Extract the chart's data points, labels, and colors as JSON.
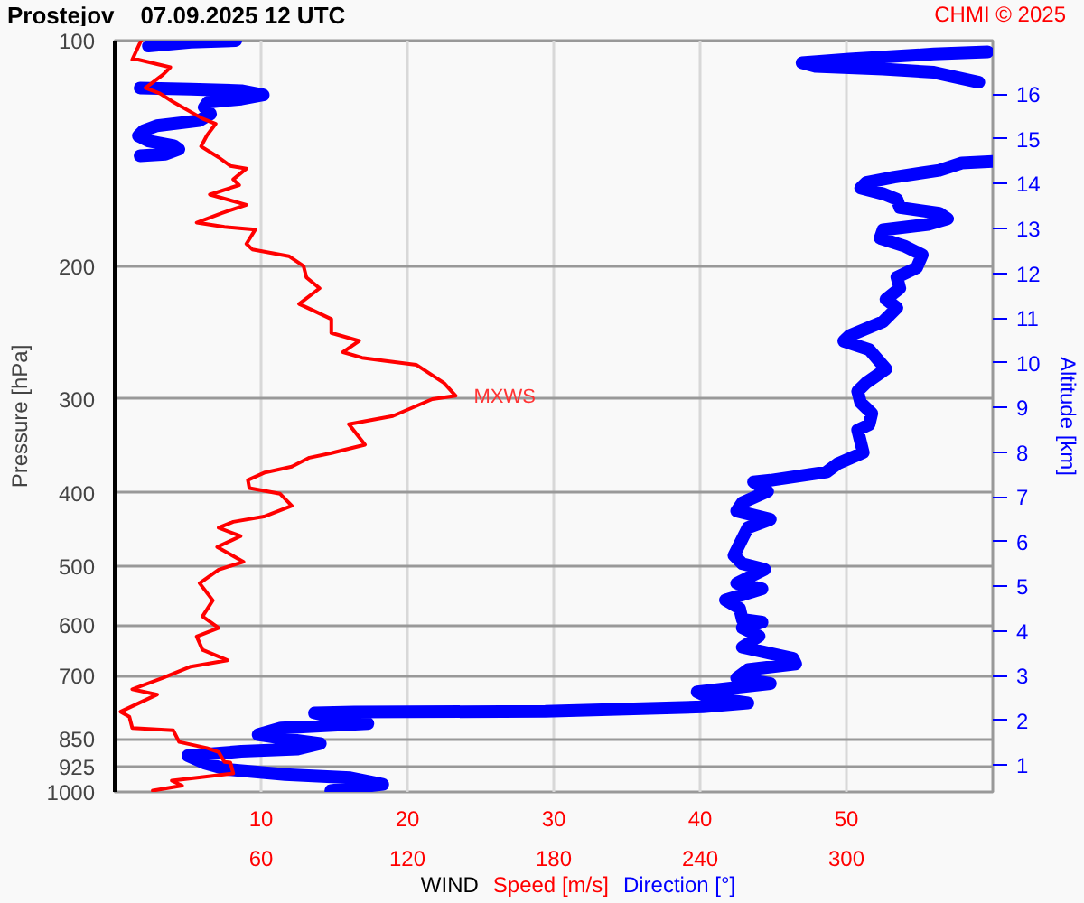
{
  "chart_data": {
    "type": "line",
    "title": "Prostejov    07.09.2025 12 UTC",
    "xlabel": "WIND",
    "ylabel": "Pressure [hPa]",
    "y2label": "Altitude [km]",
    "annotations": [
      "CHMI © 2025",
      {
        "text": "MXWS",
        "x": 23.3,
        "y": 297
      }
    ],
    "xlim": [
      0,
      60
    ],
    "xticks": [
      10,
      20,
      30,
      40,
      50
    ],
    "x2lim": [
      0,
      360
    ],
    "x2ticks": [
      60,
      120,
      180,
      240,
      300
    ],
    "ylim": [
      1000,
      100
    ],
    "yticks": [
      100,
      200,
      300,
      400,
      500,
      600,
      700,
      850,
      925,
      1000
    ],
    "y2lim": [
      0.4,
      17.2
    ],
    "y2ticks": [
      1,
      2,
      3,
      4,
      5,
      6,
      7,
      8,
      9,
      10,
      11,
      12,
      13,
      14,
      15,
      16
    ],
    "log": "y",
    "grid": true,
    "legend": "bottom",
    "line_style": "solid",
    "series": [
      {
        "name": "Speed [m/s]",
        "color": "#ff0000",
        "x": [
          1.8,
          1.2,
          1.6,
          3.8,
          3.3,
          2.1,
          3.1,
          4.0,
          6.0,
          6.9,
          6.3,
          5.9,
          7.1,
          7.9,
          9.0,
          8.1,
          8.5,
          6.5,
          9.0,
          7.3,
          5.6,
          7.5,
          9.6,
          9.0,
          9.4,
          11.9,
          12.9,
          13.1,
          14.0,
          12.6,
          13.6,
          14.8,
          14.8,
          16.7,
          15.6,
          16.9,
          18.3,
          20.6,
          22.5,
          23.3,
          21.7,
          19.0,
          16.0,
          17.1,
          14.8,
          13.3,
          12.1,
          10.2,
          9.1,
          9.2,
          11.3,
          12.1,
          10.2,
          8.1,
          7.1,
          8.6,
          7.0,
          8.8,
          7.1,
          5.8,
          6.7,
          6.0,
          7.1,
          5.6,
          6.0,
          7.7,
          5.2,
          3.3,
          1.2,
          2.9,
          0.4,
          1.0,
          1.2,
          4.0,
          4.4,
          6.3,
          7.1,
          7.5,
          7.9,
          8.1,
          5.9,
          3.9,
          4.6,
          2.6
        ],
        "values": [
          100,
          106,
          106,
          108.5,
          111,
          115.6,
          117.6,
          120.7,
          127,
          129,
          133.7,
          138.3,
          143,
          146.8,
          148,
          153,
          155.7,
          160.3,
          165.4,
          169.7,
          174.7,
          177,
          178.5,
          186.4,
          189.6,
          193.6,
          199.5,
          206.6,
          213.6,
          224.1,
          228.8,
          234.8,
          245,
          251,
          259.8,
          264.3,
          266.6,
          270,
          285.5,
          297,
          300,
          316,
          324,
          345,
          354,
          359,
          369,
          376,
          384.5,
          394,
          401,
          416,
          430,
          437,
          445,
          456.6,
          472,
          494,
          506,
          527.5,
          556,
          584,
          605,
          621,
          647,
          668,
          681,
          705,
          730,
          742,
          782,
          794,
          822,
          828,
          858,
          874,
          885,
          912,
          914,
          945,
          956,
          966,
          981,
          996
        ]
      },
      {
        "name": "Direction [°]",
        "axis": "x2",
        "color": "#0000ff",
        "x": [
          49.6,
          31.2,
          13.8,
          null,
          357.9,
          335.8,
          301.2,
          281.8,
          287.3,
          315,
          335.8,
          354.3,
          null,
          10.4,
          31.2,
          51.9,
          60.9,
          51.9,
          38.1,
          36.7,
          39.3,
          34.6,
          17.3,
          11.8,
          9.7,
          13.8,
          24.2,
          26.3,
          20.8,
          10.4,
          null,
          360,
          347.3,
          338.1,
          319.6,
          308.1,
          305.8,
          315,
          320.7,
          321.9,
          338.1,
          341.5,
          333.5,
          315,
          313.8,
          324.2,
          331.1,
          328.8,
          320.7,
          321.9,
          316.2,
          320.7,
          315,
          301.2,
          298.9,
          309.3,
          316.2,
          308.1,
          304.6,
          305.8,
          310.4,
          309.3,
          304.6,
          306.9,
          296.5,
          291.9,
          268.8,
          261.9,
          267.7,
          257.3,
          255,
          268.8,
          259.6,
          257.3,
          253.9,
          257.3,
          266.5,
          255,
          265.4,
          250.4,
          256.2,
          257.3,
          265.4,
          257.3,
          264.2,
          257.3,
          278.1,
          279.2,
          259.6,
          255,
          268.8,
          238.8,
          243.5,
          259.6,
          241.1,
          176.5,
          98.1,
          81.9,
          93.5,
          103.8,
          68.1,
          58.8,
          70.4,
          84.3,
          75,
          51.9,
          30,
          36.7,
          46,
          69.9,
          96.6,
          109.9,
          88.6
        ],
        "values": [
          100,
          100.5,
          101.7,
          null,
          103.5,
          104.2,
          105.8,
          107,
          108.2,
          109.1,
          110.2,
          113.6,
          null,
          115.6,
          116,
          116.6,
          118.1,
          119.6,
          120.8,
          122.7,
          125.2,
          127.8,
          129.8,
          131.8,
          133.9,
          136,
          138,
          139.5,
          141.6,
          142.3,
          null,
          144.8,
          145.5,
          148.8,
          151.9,
          154.5,
          157.1,
          159.9,
          162.6,
          166.8,
          169.7,
          172.6,
          175.6,
          178.6,
          183.2,
          187.9,
          192.8,
          200.6,
          206.5,
          213.6,
          221,
          226.8,
          236.6,
          247,
          251.2,
          257.7,
          273.6,
          285.5,
          292.9,
          303.1,
          313.5,
          324.4,
          329.9,
          353.4,
          365.5,
          375,
          384.7,
          386.7,
          398.1,
          412.1,
          422.7,
          433.7,
          444.9,
          460.2,
          484.3,
          496.9,
          505.6,
          527.6,
          536.6,
          555.3,
          569.7,
          589.5,
          594.3,
          604.7,
          620.4,
          641.8,
          664.2,
          675.6,
          687.4,
          705.2,
          717.3,
          735.8,
          748.2,
          761.4,
          770.4,
          781.1,
          783,
          785,
          801.2,
          810.7,
          822,
          839,
          850.3,
          862.1,
          876.7,
          883,
          894.8,
          915.2,
          933.3,
          948.3,
          957.6,
          976.8,
          995.9
        ]
      }
    ]
  }
}
